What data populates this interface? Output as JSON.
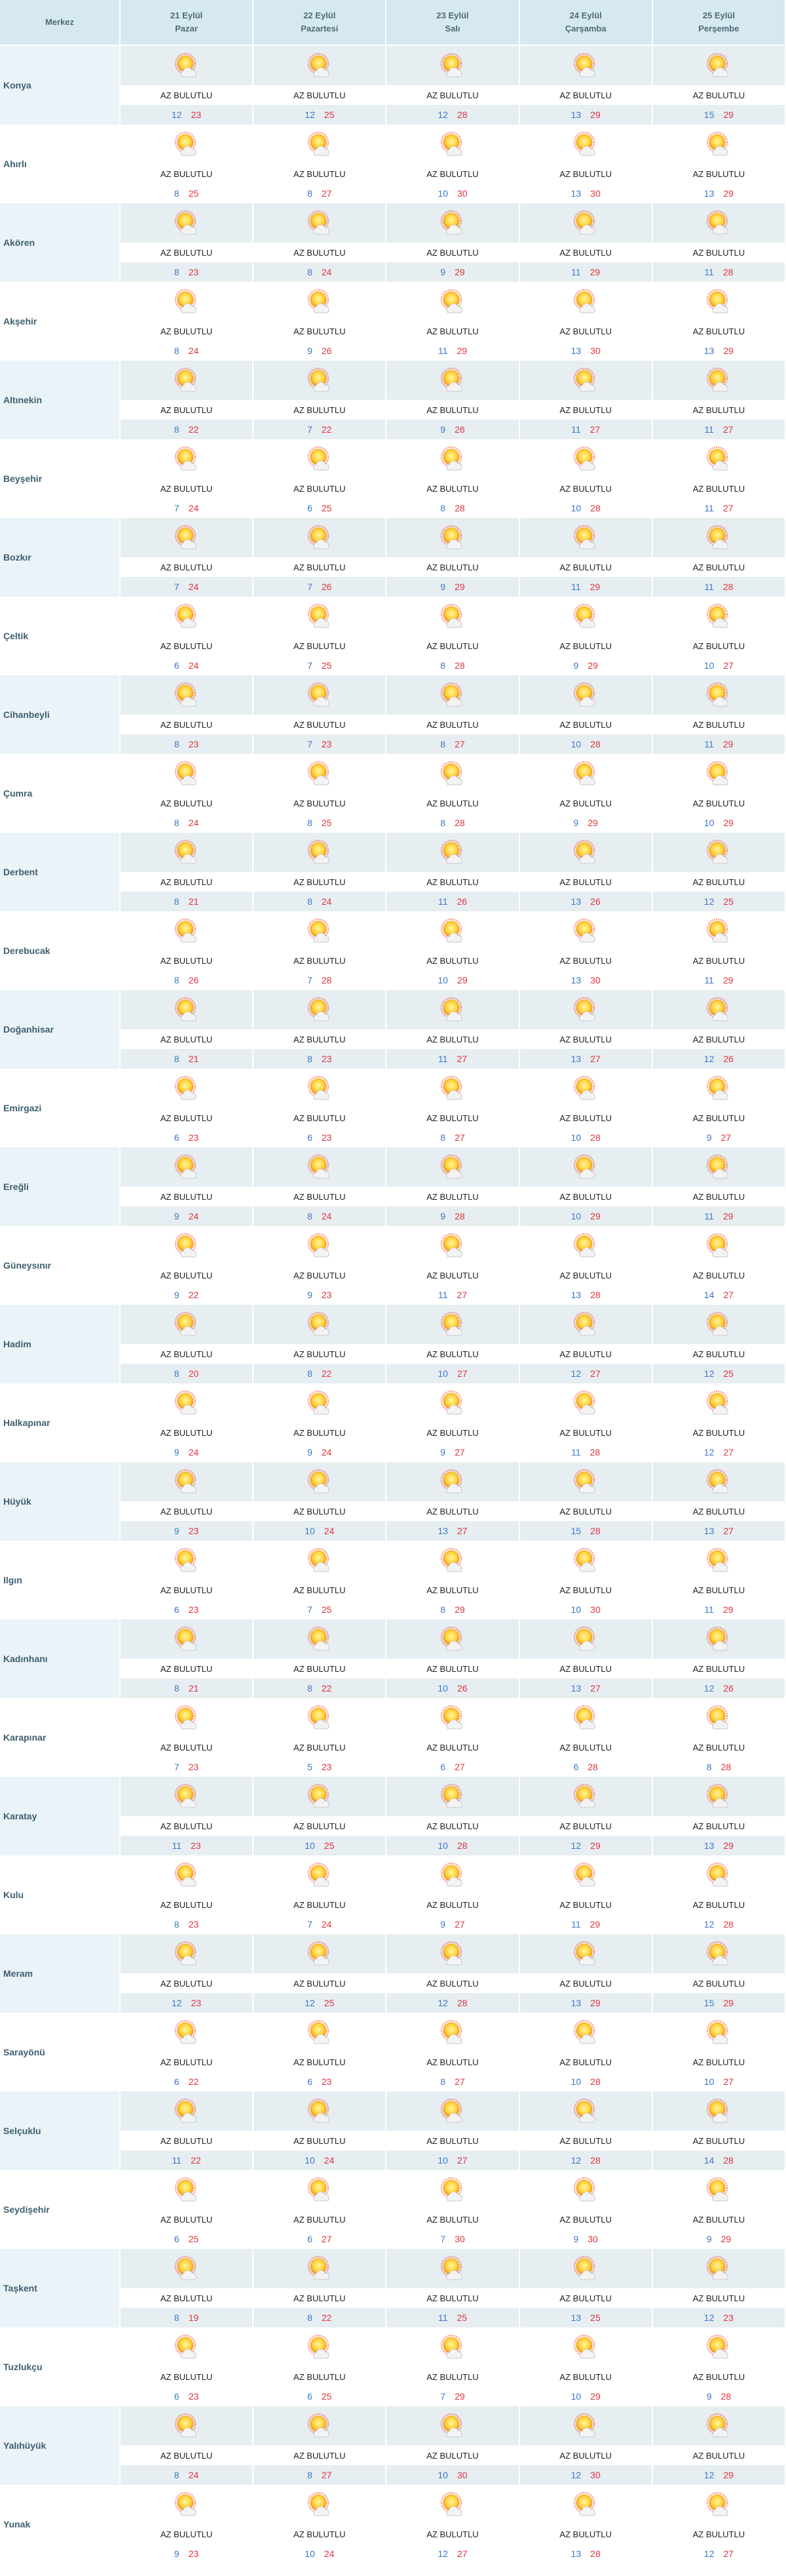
{
  "header": {
    "place_label": "Merkez"
  },
  "days": [
    {
      "date": "21 Eylül",
      "weekday": "Pazar"
    },
    {
      "date": "22 Eylül",
      "weekday": "Pazartesi"
    },
    {
      "date": "23 Eylül",
      "weekday": "Salı"
    },
    {
      "date": "24 Eylül",
      "weekday": "Çarşamba"
    },
    {
      "date": "25 Eylül",
      "weekday": "Perşembe"
    }
  ],
  "condition": {
    "label": "AZ BULUTLU",
    "icon": "partly-cloudy-sun-icon"
  },
  "colors": {
    "low": "#3a77c8",
    "high": "#e0333d",
    "header_bg": "#d6e9f0"
  },
  "rows": [
    {
      "name": "Konya",
      "temps": [
        [
          12,
          23
        ],
        [
          12,
          25
        ],
        [
          12,
          28
        ],
        [
          13,
          29
        ],
        [
          15,
          29
        ]
      ]
    },
    {
      "name": "Ahırlı",
      "temps": [
        [
          8,
          25
        ],
        [
          8,
          27
        ],
        [
          10,
          30
        ],
        [
          13,
          30
        ],
        [
          13,
          29
        ]
      ]
    },
    {
      "name": "Akören",
      "temps": [
        [
          8,
          23
        ],
        [
          8,
          24
        ],
        [
          9,
          29
        ],
        [
          11,
          29
        ],
        [
          11,
          28
        ]
      ]
    },
    {
      "name": "Akşehir",
      "temps": [
        [
          8,
          24
        ],
        [
          9,
          26
        ],
        [
          11,
          29
        ],
        [
          13,
          30
        ],
        [
          13,
          29
        ]
      ]
    },
    {
      "name": "Altınekin",
      "temps": [
        [
          8,
          22
        ],
        [
          7,
          22
        ],
        [
          9,
          26
        ],
        [
          11,
          27
        ],
        [
          11,
          27
        ]
      ]
    },
    {
      "name": "Beyşehir",
      "temps": [
        [
          7,
          24
        ],
        [
          6,
          25
        ],
        [
          8,
          28
        ],
        [
          10,
          28
        ],
        [
          11,
          27
        ]
      ]
    },
    {
      "name": "Bozkır",
      "temps": [
        [
          7,
          24
        ],
        [
          7,
          26
        ],
        [
          9,
          29
        ],
        [
          11,
          29
        ],
        [
          11,
          28
        ]
      ]
    },
    {
      "name": "Çeltik",
      "temps": [
        [
          6,
          24
        ],
        [
          7,
          25
        ],
        [
          8,
          28
        ],
        [
          9,
          29
        ],
        [
          10,
          27
        ]
      ]
    },
    {
      "name": "Cihanbeyli",
      "temps": [
        [
          8,
          23
        ],
        [
          7,
          23
        ],
        [
          8,
          27
        ],
        [
          10,
          28
        ],
        [
          11,
          29
        ]
      ]
    },
    {
      "name": "Çumra",
      "temps": [
        [
          8,
          24
        ],
        [
          8,
          25
        ],
        [
          8,
          28
        ],
        [
          9,
          29
        ],
        [
          10,
          29
        ]
      ]
    },
    {
      "name": "Derbent",
      "temps": [
        [
          8,
          21
        ],
        [
          8,
          24
        ],
        [
          11,
          26
        ],
        [
          13,
          26
        ],
        [
          12,
          25
        ]
      ]
    },
    {
      "name": "Derebucak",
      "temps": [
        [
          8,
          26
        ],
        [
          7,
          28
        ],
        [
          10,
          29
        ],
        [
          13,
          30
        ],
        [
          11,
          29
        ]
      ]
    },
    {
      "name": "Doğanhisar",
      "temps": [
        [
          8,
          21
        ],
        [
          8,
          23
        ],
        [
          11,
          27
        ],
        [
          13,
          27
        ],
        [
          12,
          26
        ]
      ]
    },
    {
      "name": "Emirgazi",
      "temps": [
        [
          6,
          23
        ],
        [
          6,
          23
        ],
        [
          8,
          27
        ],
        [
          10,
          28
        ],
        [
          9,
          27
        ]
      ]
    },
    {
      "name": "Ereğli",
      "temps": [
        [
          9,
          24
        ],
        [
          8,
          24
        ],
        [
          9,
          28
        ],
        [
          10,
          29
        ],
        [
          11,
          29
        ]
      ]
    },
    {
      "name": "Güneysınır",
      "temps": [
        [
          9,
          22
        ],
        [
          9,
          23
        ],
        [
          11,
          27
        ],
        [
          13,
          28
        ],
        [
          14,
          27
        ]
      ]
    },
    {
      "name": "Hadim",
      "temps": [
        [
          8,
          20
        ],
        [
          8,
          22
        ],
        [
          10,
          27
        ],
        [
          12,
          27
        ],
        [
          12,
          25
        ]
      ]
    },
    {
      "name": "Halkapınar",
      "temps": [
        [
          9,
          24
        ],
        [
          9,
          24
        ],
        [
          9,
          27
        ],
        [
          11,
          28
        ],
        [
          12,
          27
        ]
      ]
    },
    {
      "name": "Hüyük",
      "temps": [
        [
          9,
          23
        ],
        [
          10,
          24
        ],
        [
          13,
          27
        ],
        [
          15,
          28
        ],
        [
          13,
          27
        ]
      ]
    },
    {
      "name": "Ilgın",
      "temps": [
        [
          6,
          23
        ],
        [
          7,
          25
        ],
        [
          8,
          29
        ],
        [
          10,
          30
        ],
        [
          11,
          29
        ]
      ]
    },
    {
      "name": "Kadınhanı",
      "temps": [
        [
          8,
          21
        ],
        [
          8,
          22
        ],
        [
          10,
          26
        ],
        [
          13,
          27
        ],
        [
          12,
          26
        ]
      ]
    },
    {
      "name": "Karapınar",
      "temps": [
        [
          7,
          23
        ],
        [
          5,
          23
        ],
        [
          6,
          27
        ],
        [
          6,
          28
        ],
        [
          8,
          28
        ]
      ]
    },
    {
      "name": "Karatay",
      "temps": [
        [
          11,
          23
        ],
        [
          10,
          25
        ],
        [
          10,
          28
        ],
        [
          12,
          29
        ],
        [
          13,
          29
        ]
      ]
    },
    {
      "name": "Kulu",
      "temps": [
        [
          8,
          23
        ],
        [
          7,
          24
        ],
        [
          9,
          27
        ],
        [
          11,
          29
        ],
        [
          12,
          28
        ]
      ]
    },
    {
      "name": "Meram",
      "temps": [
        [
          12,
          23
        ],
        [
          12,
          25
        ],
        [
          12,
          28
        ],
        [
          13,
          29
        ],
        [
          15,
          29
        ]
      ]
    },
    {
      "name": "Sarayönü",
      "temps": [
        [
          6,
          22
        ],
        [
          6,
          23
        ],
        [
          8,
          27
        ],
        [
          10,
          28
        ],
        [
          10,
          27
        ]
      ]
    },
    {
      "name": "Selçuklu",
      "temps": [
        [
          11,
          22
        ],
        [
          10,
          24
        ],
        [
          10,
          27
        ],
        [
          12,
          28
        ],
        [
          14,
          28
        ]
      ]
    },
    {
      "name": "Seydişehir",
      "temps": [
        [
          6,
          25
        ],
        [
          6,
          27
        ],
        [
          7,
          30
        ],
        [
          9,
          30
        ],
        [
          9,
          29
        ]
      ]
    },
    {
      "name": "Taşkent",
      "temps": [
        [
          8,
          19
        ],
        [
          8,
          22
        ],
        [
          11,
          25
        ],
        [
          13,
          25
        ],
        [
          12,
          23
        ]
      ]
    },
    {
      "name": "Tuzlukçu",
      "temps": [
        [
          6,
          23
        ],
        [
          6,
          25
        ],
        [
          7,
          29
        ],
        [
          10,
          29
        ],
        [
          9,
          28
        ]
      ]
    },
    {
      "name": "Yalıhüyük",
      "temps": [
        [
          8,
          24
        ],
        [
          8,
          27
        ],
        [
          10,
          30
        ],
        [
          12,
          30
        ],
        [
          12,
          29
        ]
      ]
    },
    {
      "name": "Yunak",
      "temps": [
        [
          9,
          23
        ],
        [
          10,
          24
        ],
        [
          12,
          27
        ],
        [
          13,
          28
        ],
        [
          12,
          27
        ]
      ]
    }
  ]
}
